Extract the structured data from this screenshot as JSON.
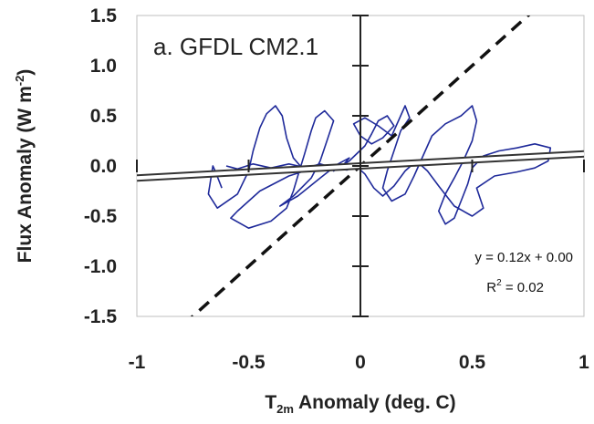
{
  "chart_data": {
    "type": "line",
    "panel_title": "a. GFDL CM2.1",
    "xlabel": {
      "main": "T",
      "sub": "2m",
      "rest": " Anomaly (deg. C)"
    },
    "ylabel": {
      "main": "Flux Anomaly (W m",
      "sup": "-2",
      "end": ")"
    },
    "xlim": [
      -1,
      1
    ],
    "ylim": [
      -1.5,
      1.5
    ],
    "xticks": [
      "-1",
      "-0.5",
      "0",
      "0.5",
      "1"
    ],
    "yticks": [
      "1.5",
      "1.0",
      "0.5",
      "0.0",
      "-0.5",
      "-1.0",
      "-1.5"
    ],
    "regression": {
      "slope": 0.12,
      "intercept": 0.0,
      "r2": 0.02
    },
    "reference_line": {
      "slope": 2.0,
      "intercept": 0.0,
      "style": "dashed"
    },
    "annotations": {
      "equation": "y = 0.12x + 0.00",
      "r2_label": "R",
      "r2_sup": "2",
      "r2_value": " = 0.02"
    },
    "series": [
      {
        "color": "#1f2a9a",
        "points": [
          [
            -0.62,
            -0.22
          ],
          [
            -0.65,
            -0.05
          ],
          [
            -0.66,
            0.0
          ],
          [
            -0.68,
            -0.28
          ],
          [
            -0.64,
            -0.42
          ],
          [
            -0.55,
            -0.28
          ],
          [
            -0.5,
            -0.05
          ],
          [
            -0.48,
            0.15
          ],
          [
            -0.45,
            0.38
          ],
          [
            -0.42,
            0.52
          ],
          [
            -0.38,
            0.6
          ],
          [
            -0.35,
            0.5
          ],
          [
            -0.33,
            0.28
          ],
          [
            -0.3,
            0.08
          ],
          [
            -0.25,
            -0.05
          ],
          [
            -0.32,
            -0.1
          ],
          [
            -0.45,
            -0.25
          ],
          [
            -0.55,
            -0.45
          ],
          [
            -0.58,
            -0.52
          ],
          [
            -0.5,
            -0.62
          ],
          [
            -0.4,
            -0.55
          ],
          [
            -0.33,
            -0.42
          ],
          [
            -0.3,
            -0.25
          ],
          [
            -0.28,
            -0.1
          ],
          [
            -0.25,
            0.12
          ],
          [
            -0.22,
            0.35
          ],
          [
            -0.2,
            0.48
          ],
          [
            -0.16,
            0.55
          ],
          [
            -0.12,
            0.45
          ],
          [
            -0.15,
            0.25
          ],
          [
            -0.18,
            0.05
          ],
          [
            -0.22,
            -0.12
          ],
          [
            -0.3,
            -0.3
          ],
          [
            -0.36,
            -0.4
          ],
          [
            -0.28,
            -0.3
          ],
          [
            -0.18,
            -0.12
          ],
          [
            -0.1,
            0.02
          ],
          [
            -0.05,
            0.08
          ],
          [
            -0.08,
            0.0
          ],
          [
            -0.12,
            -0.05
          ],
          [
            -0.05,
            0.05
          ],
          [
            0.02,
            0.2
          ],
          [
            0.05,
            0.32
          ],
          [
            0.08,
            0.45
          ],
          [
            0.12,
            0.5
          ],
          [
            0.15,
            0.4
          ],
          [
            0.1,
            0.28
          ],
          [
            0.05,
            0.22
          ],
          [
            0.0,
            0.3
          ],
          [
            -0.03,
            0.42
          ],
          [
            0.02,
            0.48
          ],
          [
            0.08,
            0.4
          ],
          [
            0.14,
            0.3
          ],
          [
            0.18,
            0.5
          ],
          [
            0.2,
            0.6
          ],
          [
            0.22,
            0.48
          ],
          [
            0.18,
            0.35
          ],
          [
            0.15,
            0.15
          ],
          [
            0.12,
            -0.05
          ],
          [
            0.1,
            -0.22
          ],
          [
            0.14,
            -0.35
          ],
          [
            0.2,
            -0.28
          ],
          [
            0.24,
            -0.1
          ],
          [
            0.28,
            0.1
          ],
          [
            0.32,
            0.3
          ],
          [
            0.38,
            0.42
          ],
          [
            0.45,
            0.5
          ],
          [
            0.5,
            0.6
          ],
          [
            0.52,
            0.45
          ],
          [
            0.5,
            0.25
          ],
          [
            0.46,
            0.05
          ],
          [
            0.42,
            -0.12
          ],
          [
            0.38,
            -0.28
          ],
          [
            0.35,
            -0.45
          ],
          [
            0.38,
            -0.58
          ],
          [
            0.42,
            -0.52
          ],
          [
            0.45,
            -0.35
          ],
          [
            0.48,
            -0.18
          ],
          [
            0.5,
            -0.02
          ],
          [
            0.55,
            0.1
          ],
          [
            0.62,
            0.15
          ],
          [
            0.7,
            0.18
          ],
          [
            0.78,
            0.22
          ],
          [
            0.85,
            0.18
          ],
          [
            0.84,
            0.05
          ],
          [
            0.78,
            -0.02
          ],
          [
            0.7,
            -0.06
          ],
          [
            0.6,
            -0.1
          ],
          [
            0.52,
            -0.22
          ],
          [
            0.55,
            -0.42
          ],
          [
            0.5,
            -0.5
          ],
          [
            0.42,
            -0.4
          ],
          [
            0.35,
            -0.2
          ],
          [
            0.3,
            -0.05
          ],
          [
            0.25,
            0.05
          ],
          [
            0.2,
            -0.05
          ],
          [
            0.15,
            -0.2
          ],
          [
            0.1,
            -0.3
          ],
          [
            0.06,
            -0.22
          ],
          [
            0.02,
            -0.08
          ],
          [
            -0.02,
            0.0
          ],
          [
            -0.06,
            -0.04
          ],
          [
            -0.12,
            -0.02
          ],
          [
            -0.18,
            0.02
          ],
          [
            -0.24,
            -0.02
          ],
          [
            -0.32,
            0.02
          ],
          [
            -0.4,
            -0.02
          ],
          [
            -0.48,
            0.02
          ],
          [
            -0.55,
            -0.03
          ],
          [
            -0.6,
            0.0
          ]
        ]
      }
    ]
  }
}
